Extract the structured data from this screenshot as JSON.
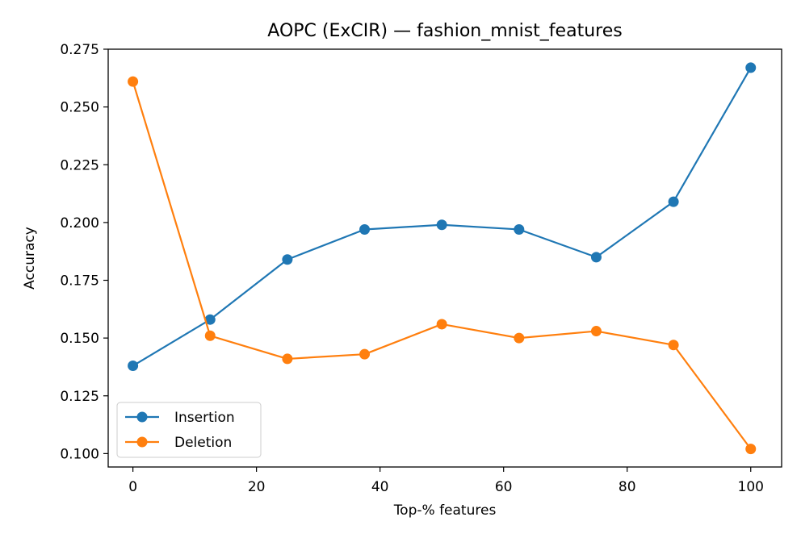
{
  "chart_data": {
    "type": "line",
    "title": "AOPC (ExCIR) — fashion_mnist_features",
    "xlabel": "Top-% features",
    "ylabel": "Accuracy",
    "x": [
      0,
      12.5,
      25,
      37.5,
      50,
      62.5,
      75,
      87.5,
      100
    ],
    "xlim": [
      -4,
      105
    ],
    "ylim": [
      0.0942,
      0.275
    ],
    "xticks": [
      0,
      20,
      40,
      60,
      80,
      100
    ],
    "xtick_labels": [
      "0",
      "20",
      "40",
      "60",
      "80",
      "100"
    ],
    "yticks": [
      0.1,
      0.125,
      0.15,
      0.175,
      0.2,
      0.225,
      0.25,
      0.275
    ],
    "ytick_labels": [
      "0.100",
      "0.125",
      "0.150",
      "0.175",
      "0.200",
      "0.225",
      "0.250",
      "0.275"
    ],
    "grid": false,
    "legend_position": "lower-left",
    "series": [
      {
        "name": "Insertion",
        "color": "#1f77b4",
        "marker": "circle",
        "values": [
          0.138,
          0.158,
          0.184,
          0.197,
          0.199,
          0.197,
          0.185,
          0.209,
          0.267
        ]
      },
      {
        "name": "Deletion",
        "color": "#ff7f0e",
        "marker": "circle",
        "values": [
          0.261,
          0.151,
          0.141,
          0.143,
          0.156,
          0.15,
          0.153,
          0.147,
          0.102
        ]
      }
    ]
  }
}
